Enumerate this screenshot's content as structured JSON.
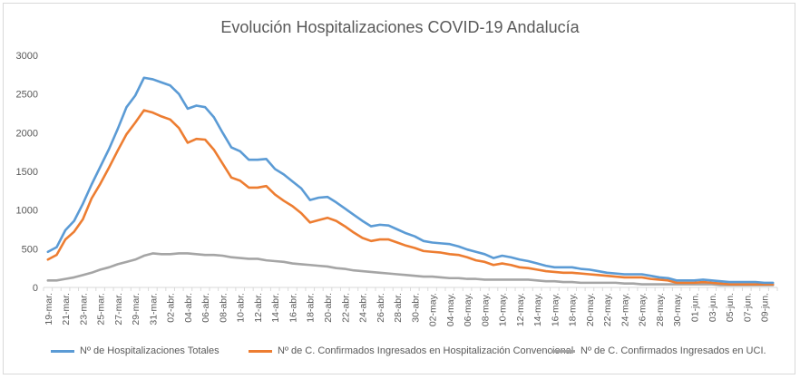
{
  "chart_data": {
    "type": "line",
    "title": "Evolución Hospitalizaciones COVID-19 Andalucía",
    "xlabel": "",
    "ylabel": "",
    "ylim": [
      0,
      3000
    ],
    "yticks": [
      0,
      500,
      1000,
      1500,
      2000,
      2500,
      3000
    ],
    "grid": false,
    "legend_position": "bottom",
    "x": [
      "19-mar.",
      "20-mar.",
      "21-mar.",
      "22-mar.",
      "23-mar.",
      "24-mar.",
      "25-mar.",
      "26-mar.",
      "27-mar.",
      "28-mar.",
      "29-mar.",
      "30-mar.",
      "31-mar.",
      "01-abr.",
      "02-abr.",
      "03-abr.",
      "04-abr.",
      "05-abr.",
      "06-abr.",
      "07-abr.",
      "08-abr.",
      "09-abr.",
      "10-abr.",
      "11-abr.",
      "12-abr.",
      "13-abr.",
      "14-abr.",
      "15-abr.",
      "16-abr.",
      "17-abr.",
      "18-abr.",
      "19-abr.",
      "20-abr.",
      "21-abr.",
      "22-abr.",
      "23-abr.",
      "24-abr.",
      "25-abr.",
      "26-abr.",
      "27-abr.",
      "28-abr.",
      "29-abr.",
      "30-abr.",
      "01-may.",
      "02-may.",
      "03-may.",
      "04-may.",
      "05-may.",
      "06-may.",
      "07-may.",
      "08-may.",
      "09-may.",
      "10-may.",
      "11-may.",
      "12-may.",
      "13-may.",
      "14-may.",
      "15-may.",
      "16-may.",
      "17-may.",
      "18-may.",
      "19-may.",
      "20-may.",
      "21-may.",
      "22-may.",
      "23-may.",
      "24-may.",
      "25-may.",
      "26-may.",
      "27-may.",
      "28-may.",
      "29-may.",
      "30-may.",
      "31-may.",
      "01-jun.",
      "02-jun.",
      "03-jun.",
      "04-jun.",
      "05-jun.",
      "06-jun.",
      "07-jun.",
      "08-jun.",
      "09-jun.",
      "10-jun."
    ],
    "x_tick_labels": [
      "19-mar.",
      "21-mar.",
      "23-mar.",
      "25-mar.",
      "27-mar.",
      "29-mar.",
      "31-mar.",
      "02-abr.",
      "04-abr.",
      "06-abr.",
      "08-abr.",
      "10-abr.",
      "12-abr.",
      "14-abr.",
      "16-abr.",
      "18-abr.",
      "20-abr.",
      "22-abr.",
      "24-abr.",
      "26-abr.",
      "28-abr.",
      "30-abr.",
      "02-may.",
      "04-may.",
      "06-may.",
      "08-may.",
      "10-may.",
      "12-may.",
      "14-may.",
      "16-may.",
      "18-may.",
      "20-may.",
      "22-may.",
      "24-may.",
      "26-may.",
      "28-may.",
      "30-may.",
      "01-jun.",
      "03-jun.",
      "05-jun.",
      "07-jun.",
      "09-jun."
    ],
    "series": [
      {
        "name": "Nº de Hospitalizaciones Totales",
        "color": "#5b9bd5",
        "values": [
          460,
          520,
          740,
          860,
          1080,
          1330,
          1560,
          1790,
          2050,
          2330,
          2480,
          2710,
          2690,
          2650,
          2610,
          2500,
          2310,
          2350,
          2330,
          2200,
          2000,
          1810,
          1760,
          1650,
          1650,
          1660,
          1530,
          1460,
          1370,
          1280,
          1130,
          1160,
          1170,
          1100,
          1020,
          940,
          860,
          790,
          810,
          800,
          750,
          700,
          660,
          600,
          580,
          570,
          560,
          530,
          490,
          460,
          430,
          380,
          410,
          390,
          360,
          340,
          310,
          280,
          260,
          260,
          260,
          240,
          230,
          210,
          190,
          180,
          170,
          170,
          170,
          150,
          130,
          120,
          90,
          90,
          90,
          100,
          90,
          80,
          70,
          70,
          70,
          70,
          60,
          60
        ]
      },
      {
        "name": "Nº de C. Confirmados Ingresados en Hospitalización Convencional",
        "color": "#ed7d31",
        "values": [
          360,
          420,
          620,
          720,
          880,
          1150,
          1340,
          1550,
          1770,
          1980,
          2130,
          2290,
          2260,
          2210,
          2170,
          2060,
          1870,
          1920,
          1910,
          1780,
          1600,
          1420,
          1380,
          1290,
          1290,
          1310,
          1200,
          1120,
          1050,
          960,
          840,
          870,
          900,
          860,
          790,
          710,
          640,
          600,
          620,
          620,
          580,
          540,
          510,
          470,
          460,
          450,
          430,
          420,
          390,
          350,
          330,
          290,
          310,
          290,
          260,
          250,
          230,
          210,
          200,
          190,
          190,
          180,
          170,
          160,
          150,
          140,
          130,
          130,
          130,
          110,
          100,
          90,
          60,
          60,
          60,
          70,
          60,
          50,
          40,
          40,
          40,
          40,
          40,
          40
        ]
      },
      {
        "name": "Nº de C. Confirmados Ingresados en UCI.",
        "color": "#a5a5a5",
        "values": [
          90,
          90,
          110,
          130,
          160,
          190,
          230,
          260,
          300,
          330,
          360,
          410,
          440,
          430,
          430,
          440,
          440,
          430,
          420,
          420,
          410,
          390,
          380,
          370,
          370,
          350,
          340,
          330,
          310,
          300,
          290,
          280,
          270,
          250,
          240,
          220,
          210,
          200,
          190,
          180,
          170,
          160,
          150,
          140,
          140,
          130,
          120,
          120,
          110,
          110,
          100,
          100,
          100,
          100,
          100,
          100,
          90,
          80,
          80,
          70,
          70,
          60,
          60,
          60,
          60,
          60,
          50,
          50,
          40,
          40,
          40,
          40,
          40,
          40,
          40,
          40,
          40,
          30,
          30,
          30,
          30,
          30,
          30,
          30
        ]
      }
    ]
  }
}
